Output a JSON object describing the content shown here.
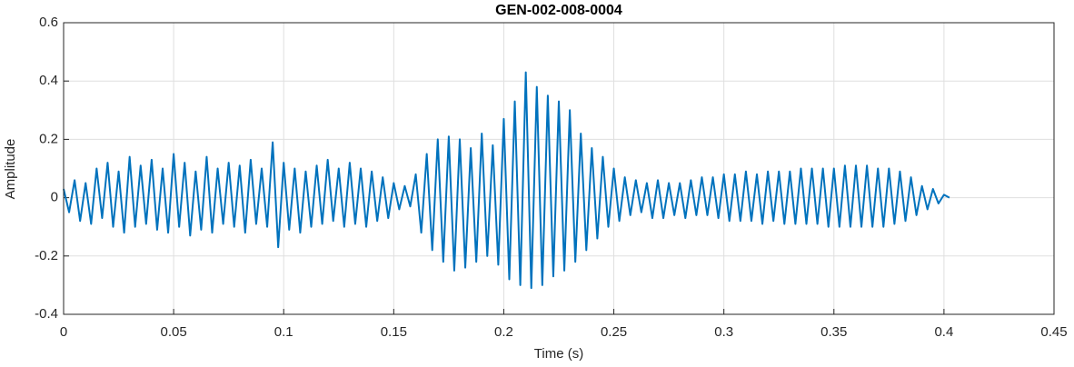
{
  "chart_data": {
    "type": "line",
    "title": "GEN-002-008-0004",
    "xlabel": "Time (s)",
    "ylabel": "Amplitude",
    "color": "#0072bd",
    "grid": true,
    "xlim": [
      0,
      0.45
    ],
    "ylim": [
      -0.4,
      0.6
    ],
    "xticks": [
      0,
      0.05,
      0.1,
      0.15,
      0.2,
      0.25,
      0.3,
      0.35,
      0.4,
      0.45
    ],
    "yticks": [
      -0.4,
      -0.2,
      0,
      0.2,
      0.4,
      0.6
    ],
    "x": [
      0,
      0.0025,
      0.005,
      0.0075,
      0.01,
      0.0125,
      0.015,
      0.0175,
      0.02,
      0.0225,
      0.025,
      0.0275,
      0.03,
      0.0325,
      0.035,
      0.0375,
      0.04,
      0.0425,
      0.045,
      0.0475,
      0.05,
      0.0525,
      0.055,
      0.0575,
      0.06,
      0.0625,
      0.065,
      0.0675,
      0.07,
      0.0725,
      0.075,
      0.0775,
      0.08,
      0.0825,
      0.085,
      0.0875,
      0.09,
      0.0925,
      0.095,
      0.0975,
      0.1,
      0.1025,
      0.105,
      0.1075,
      0.11,
      0.1125,
      0.115,
      0.1175,
      0.12,
      0.1225,
      0.125,
      0.1275,
      0.13,
      0.1325,
      0.135,
      0.1375,
      0.14,
      0.1425,
      0.145,
      0.1475,
      0.15,
      0.1525,
      0.155,
      0.1575,
      0.16,
      0.1625,
      0.165,
      0.1675,
      0.17,
      0.1725,
      0.175,
      0.1775,
      0.18,
      0.1825,
      0.185,
      0.1875,
      0.19,
      0.1925,
      0.195,
      0.1975,
      0.2,
      0.2025,
      0.205,
      0.2075,
      0.21,
      0.2125,
      0.215,
      0.2175,
      0.22,
      0.2225,
      0.225,
      0.2275,
      0.23,
      0.2325,
      0.235,
      0.2375,
      0.24,
      0.2425,
      0.245,
      0.2475,
      0.25,
      0.2525,
      0.255,
      0.2575,
      0.26,
      0.2625,
      0.265,
      0.2675,
      0.27,
      0.2725,
      0.275,
      0.2775,
      0.28,
      0.2825,
      0.285,
      0.2875,
      0.29,
      0.2925,
      0.295,
      0.2975,
      0.3,
      0.3025,
      0.305,
      0.3075,
      0.31,
      0.3125,
      0.315,
      0.3175,
      0.32,
      0.3225,
      0.325,
      0.3275,
      0.33,
      0.3325,
      0.335,
      0.3375,
      0.34,
      0.3425,
      0.345,
      0.3475,
      0.35,
      0.3525,
      0.355,
      0.3575,
      0.36,
      0.3625,
      0.365,
      0.3675,
      0.37,
      0.3725,
      0.375,
      0.3775,
      0.38,
      0.3825,
      0.385,
      0.3875,
      0.39,
      0.3925,
      0.395,
      0.3975,
      0.4,
      0.4025
    ],
    "values": [
      0.03,
      -0.05,
      0.06,
      -0.08,
      0.05,
      -0.09,
      0.1,
      -0.07,
      0.12,
      -0.1,
      0.09,
      -0.12,
      0.14,
      -0.1,
      0.11,
      -0.09,
      0.13,
      -0.11,
      0.1,
      -0.12,
      0.15,
      -0.1,
      0.12,
      -0.13,
      0.09,
      -0.11,
      0.14,
      -0.12,
      0.1,
      -0.09,
      0.12,
      -0.1,
      0.11,
      -0.12,
      0.13,
      -0.09,
      0.1,
      -0.1,
      0.19,
      -0.17,
      0.12,
      -0.11,
      0.1,
      -0.12,
      0.09,
      -0.1,
      0.11,
      -0.09,
      0.13,
      -0.08,
      0.1,
      -0.1,
      0.12,
      -0.09,
      0.1,
      -0.1,
      0.09,
      -0.08,
      0.07,
      -0.07,
      0.05,
      -0.04,
      0.04,
      -0.03,
      0.08,
      -0.12,
      0.15,
      -0.18,
      0.2,
      -0.22,
      0.21,
      -0.25,
      0.2,
      -0.24,
      0.17,
      -0.22,
      0.22,
      -0.2,
      0.18,
      -0.23,
      0.27,
      -0.28,
      0.33,
      -0.3,
      0.43,
      -0.31,
      0.38,
      -0.3,
      0.35,
      -0.27,
      0.33,
      -0.25,
      0.3,
      -0.22,
      0.22,
      -0.18,
      0.17,
      -0.14,
      0.14,
      -0.1,
      0.1,
      -0.08,
      0.07,
      -0.06,
      0.06,
      -0.05,
      0.05,
      -0.07,
      0.06,
      -0.07,
      0.05,
      -0.06,
      0.05,
      -0.07,
      0.06,
      -0.06,
      0.07,
      -0.06,
      0.07,
      -0.07,
      0.08,
      -0.08,
      0.08,
      -0.08,
      0.09,
      -0.08,
      0.08,
      -0.09,
      0.09,
      -0.08,
      0.09,
      -0.09,
      0.09,
      -0.09,
      0.1,
      -0.09,
      0.1,
      -0.09,
      0.1,
      -0.1,
      0.1,
      -0.1,
      0.11,
      -0.1,
      0.11,
      -0.1,
      0.11,
      -0.1,
      0.1,
      -0.1,
      0.1,
      -0.09,
      0.09,
      -0.08,
      0.07,
      -0.06,
      0.04,
      -0.04,
      0.03,
      -0.02,
      0.01,
      0
    ]
  }
}
